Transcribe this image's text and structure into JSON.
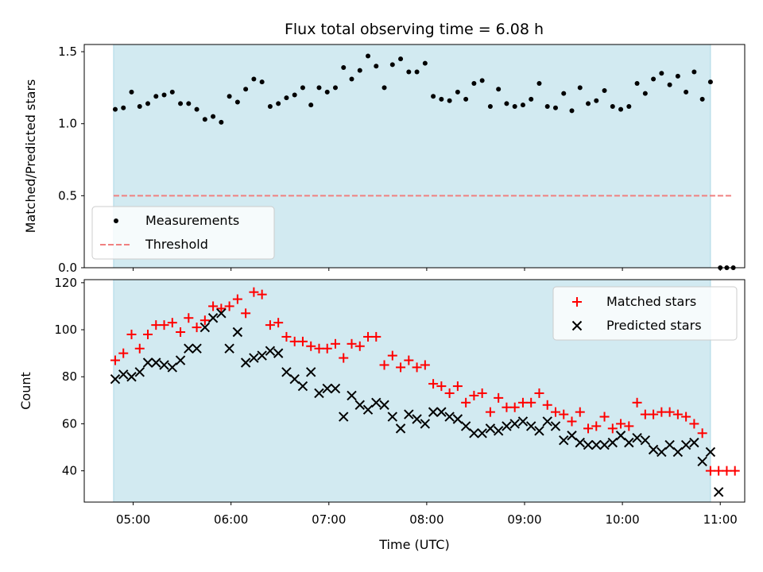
{
  "title": "Flux total observing time = 6.08 h",
  "colors": {
    "band": "#add8e6",
    "threshold": "#f08080",
    "matched": "#ff0000",
    "predicted": "#000000",
    "measurement": "#000000"
  },
  "chart_data": [
    {
      "type": "scatter",
      "ylabel": "Matched/Predicted stars",
      "xlabel": "",
      "xlim": [
        "04:30",
        "11:15"
      ],
      "ylim": [
        0,
        1.55
      ],
      "yticks": [
        "0.0",
        "0.5",
        "1.0",
        "1.5"
      ],
      "xticks": [
        "05:00",
        "06:00",
        "07:00",
        "08:00",
        "09:00",
        "10:00",
        "11:00"
      ],
      "observing_window": [
        "04:48",
        "10:54"
      ],
      "threshold": 0.5,
      "threshold_x": [
        "04:48",
        "11:08"
      ],
      "legend_position": "lower-left",
      "series": [
        {
          "name": "Measurements",
          "marker": "dot",
          "x": [
            "04:49",
            "04:54",
            "04:59",
            "05:04",
            "05:09",
            "05:14",
            "05:19",
            "05:24",
            "05:29",
            "05:34",
            "05:39",
            "05:44",
            "05:49",
            "05:54",
            "05:59",
            "06:04",
            "06:09",
            "06:14",
            "06:19",
            "06:24",
            "06:29",
            "06:34",
            "06:39",
            "06:44",
            "06:49",
            "06:54",
            "06:59",
            "07:04",
            "07:09",
            "07:14",
            "07:19",
            "07:24",
            "07:29",
            "07:34",
            "07:39",
            "07:44",
            "07:49",
            "07:54",
            "07:59",
            "08:04",
            "08:09",
            "08:14",
            "08:19",
            "08:24",
            "08:29",
            "08:34",
            "08:39",
            "08:44",
            "08:49",
            "08:54",
            "08:59",
            "09:04",
            "09:09",
            "09:14",
            "09:19",
            "09:24",
            "09:29",
            "09:34",
            "09:39",
            "09:44",
            "09:49",
            "09:54",
            "09:59",
            "10:04",
            "10:09",
            "10:14",
            "10:19",
            "10:24",
            "10:29",
            "10:34",
            "10:39",
            "10:44",
            "10:49",
            "10:54",
            "11:00",
            "11:04",
            "11:08"
          ],
          "y": [
            1.1,
            1.11,
            1.22,
            1.12,
            1.14,
            1.19,
            1.2,
            1.22,
            1.14,
            1.14,
            1.1,
            1.03,
            1.05,
            1.01,
            1.19,
            1.15,
            1.24,
            1.31,
            1.29,
            1.12,
            1.14,
            1.18,
            1.2,
            1.25,
            1.13,
            1.25,
            1.22,
            1.25,
            1.39,
            1.31,
            1.37,
            1.47,
            1.4,
            1.25,
            1.41,
            1.45,
            1.36,
            1.36,
            1.42,
            1.19,
            1.17,
            1.16,
            1.22,
            1.17,
            1.28,
            1.3,
            1.12,
            1.24,
            1.14,
            1.12,
            1.13,
            1.17,
            1.28,
            1.12,
            1.11,
            1.21,
            1.09,
            1.25,
            1.14,
            1.16,
            1.23,
            1.12,
            1.1,
            1.12,
            1.28,
            1.21,
            1.31,
            1.35,
            1.27,
            1.33,
            1.22,
            1.36,
            1.17,
            1.29,
            0.0,
            0.0,
            0.0
          ]
        },
        {
          "name": "Threshold",
          "marker": "dashed-line"
        }
      ]
    },
    {
      "type": "scatter",
      "ylabel": "Count",
      "xlabel": "Time (UTC)",
      "xlim": [
        "04:30",
        "11:15"
      ],
      "ylim": [
        26.7,
        121.3
      ],
      "yticks": [
        "40",
        "60",
        "80",
        "100",
        "120"
      ],
      "xticks": [
        "05:00",
        "06:00",
        "07:00",
        "08:00",
        "09:00",
        "10:00",
        "11:00"
      ],
      "observing_window": [
        "04:48",
        "10:54"
      ],
      "legend_position": "upper-right",
      "series": [
        {
          "name": "Matched stars",
          "marker": "plus",
          "x": [
            "04:49",
            "04:54",
            "04:59",
            "05:04",
            "05:09",
            "05:14",
            "05:19",
            "05:24",
            "05:29",
            "05:34",
            "05:39",
            "05:44",
            "05:49",
            "05:54",
            "05:59",
            "06:04",
            "06:09",
            "06:14",
            "06:19",
            "06:24",
            "06:29",
            "06:34",
            "06:39",
            "06:44",
            "06:49",
            "06:54",
            "06:59",
            "07:04",
            "07:09",
            "07:14",
            "07:19",
            "07:24",
            "07:29",
            "07:34",
            "07:39",
            "07:44",
            "07:49",
            "07:54",
            "07:59",
            "08:04",
            "08:09",
            "08:14",
            "08:19",
            "08:24",
            "08:29",
            "08:34",
            "08:39",
            "08:44",
            "08:49",
            "08:54",
            "08:59",
            "09:04",
            "09:09",
            "09:14",
            "09:19",
            "09:24",
            "09:29",
            "09:34",
            "09:39",
            "09:44",
            "09:49",
            "09:54",
            "09:59",
            "10:04",
            "10:09",
            "10:14",
            "10:19",
            "10:24",
            "10:29",
            "10:34",
            "10:39",
            "10:44",
            "10:49",
            "10:54",
            "10:59",
            "11:04",
            "11:09"
          ],
          "y": [
            87,
            90,
            98,
            92,
            98,
            102,
            102,
            103,
            99,
            105,
            101,
            104,
            110,
            109,
            110,
            113,
            107,
            116,
            115,
            102,
            103,
            97,
            95,
            95,
            93,
            92,
            92,
            94,
            88,
            94,
            93,
            97,
            97,
            85,
            89,
            84,
            87,
            84,
            85,
            77,
            76,
            73,
            76,
            69,
            72,
            73,
            65,
            71,
            67,
            67,
            69,
            69,
            73,
            68,
            65,
            64,
            61,
            65,
            58,
            59,
            63,
            58,
            60,
            59,
            69,
            64,
            64,
            65,
            65,
            64,
            63,
            60,
            56,
            40,
            40,
            40,
            40
          ]
        },
        {
          "name": "Predicted stars",
          "marker": "x",
          "x": [
            "04:49",
            "04:54",
            "04:59",
            "05:04",
            "05:09",
            "05:14",
            "05:19",
            "05:24",
            "05:29",
            "05:34",
            "05:39",
            "05:44",
            "05:49",
            "05:54",
            "05:59",
            "06:04",
            "06:09",
            "06:14",
            "06:19",
            "06:24",
            "06:29",
            "06:34",
            "06:39",
            "06:44",
            "06:49",
            "06:54",
            "06:59",
            "07:04",
            "07:09",
            "07:14",
            "07:19",
            "07:24",
            "07:29",
            "07:34",
            "07:39",
            "07:44",
            "07:49",
            "07:54",
            "07:59",
            "08:04",
            "08:09",
            "08:14",
            "08:19",
            "08:24",
            "08:29",
            "08:34",
            "08:39",
            "08:44",
            "08:49",
            "08:54",
            "08:59",
            "09:04",
            "09:09",
            "09:14",
            "09:19",
            "09:24",
            "09:29",
            "09:34",
            "09:39",
            "09:44",
            "09:49",
            "09:54",
            "09:59",
            "10:04",
            "10:09",
            "10:14",
            "10:19",
            "10:24",
            "10:29",
            "10:34",
            "10:39",
            "10:44",
            "10:49",
            "10:54",
            "10:59"
          ],
          "y": [
            79,
            81,
            80,
            82,
            86,
            86,
            85,
            84,
            87,
            92,
            92,
            101,
            105,
            107,
            92,
            99,
            86,
            88,
            89,
            91,
            90,
            82,
            79,
            76,
            82,
            73,
            75,
            75,
            63,
            72,
            68,
            66,
            69,
            68,
            63,
            58,
            64,
            62,
            60,
            65,
            65,
            63,
            62,
            59,
            56,
            56,
            58,
            57,
            59,
            60,
            61,
            59,
            57,
            61,
            59,
            53,
            55,
            52,
            51,
            51,
            51,
            52,
            55,
            52,
            54,
            53,
            49,
            48,
            51,
            48,
            51,
            52,
            44,
            48,
            31
          ]
        }
      ]
    }
  ]
}
